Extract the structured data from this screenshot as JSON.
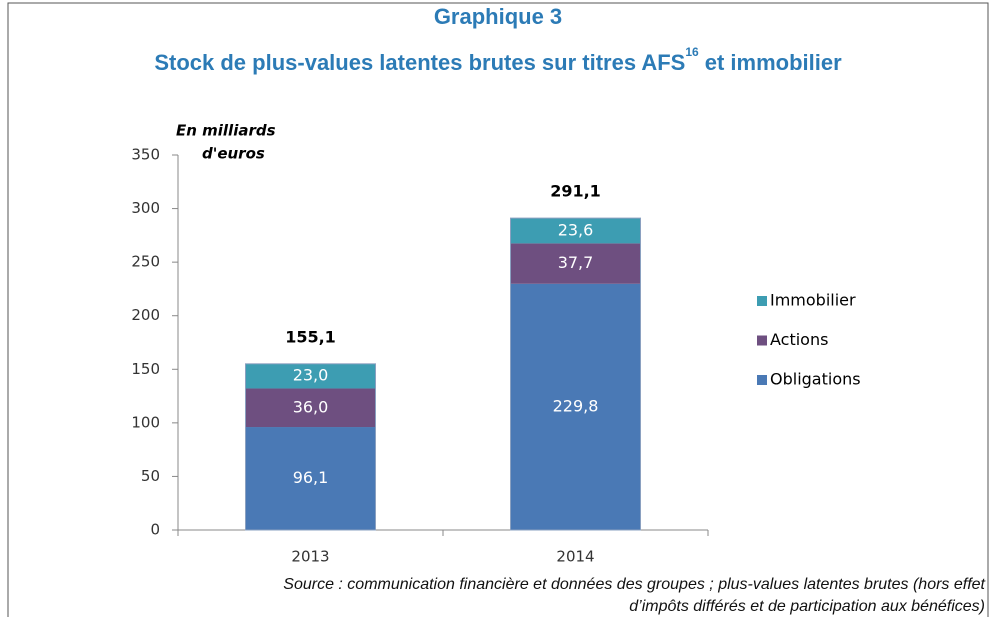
{
  "chart_data": {
    "type": "stacked_bar",
    "title": "Graphique 3",
    "subtitle": "Stock de plus-values latentes brutes sur titres AFS",
    "subtitle_sup": "16",
    "subtitle_end": "et immobilier",
    "ylabel": [
      "En milliards",
      "d'euros"
    ],
    "categories": [
      "2013",
      "2014"
    ],
    "series": [
      {
        "name": "Obligations",
        "color": "#4a79b5",
        "values": [
          96.1,
          229.8
        ],
        "value_labels": [
          "96,1",
          "229,8"
        ]
      },
      {
        "name": "Actions",
        "color": "#6e4f80",
        "values": [
          36.0,
          37.7
        ],
        "value_labels": [
          "36,0",
          "37,7"
        ]
      },
      {
        "name": "Immobilier",
        "color": "#3d9db2",
        "values": [
          23.0,
          23.6
        ],
        "value_labels": [
          "23,0",
          "23,6"
        ]
      }
    ],
    "totals": [
      155.1,
      291.1
    ],
    "total_labels": [
      "155,1",
      "291,1"
    ],
    "ylim": [
      0,
      350
    ],
    "yticks": [
      0,
      50,
      100,
      150,
      200,
      250,
      300,
      350
    ],
    "legend": "right",
    "source": [
      "Source : communication financière et données des groupes ; plus-values latentes brutes (hors effet",
      "d’impôts différés et de participation aux bénéfices)"
    ]
  }
}
